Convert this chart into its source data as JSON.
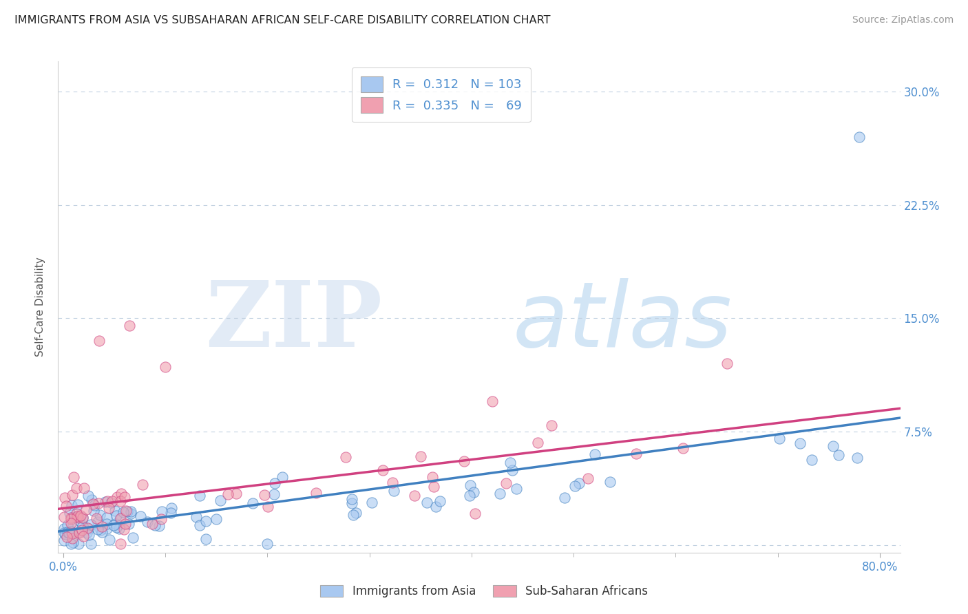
{
  "title": "IMMIGRANTS FROM ASIA VS SUBSAHARAN AFRICAN SELF-CARE DISABILITY CORRELATION CHART",
  "source": "Source: ZipAtlas.com",
  "ylabel": "Self-Care Disability",
  "watermark_zip": "ZIP",
  "watermark_atlas": "atlas",
  "r_asia": 0.312,
  "n_asia": 103,
  "r_africa": 0.335,
  "n_africa": 69,
  "xlim": [
    -0.005,
    0.82
  ],
  "ylim": [
    -0.005,
    0.32
  ],
  "yticks": [
    0.0,
    0.075,
    0.15,
    0.225,
    0.3
  ],
  "ytick_labels": [
    "",
    "7.5%",
    "15.0%",
    "22.5%",
    "30.0%"
  ],
  "color_asia": "#a8c8f0",
  "color_africa": "#f0a0b0",
  "color_line_asia": "#4080c0",
  "color_line_africa": "#d04080",
  "color_tick_label": "#5090d0",
  "color_title": "#222222",
  "background_color": "#ffffff",
  "grid_color": "#c0d0e0",
  "seed": 12345
}
